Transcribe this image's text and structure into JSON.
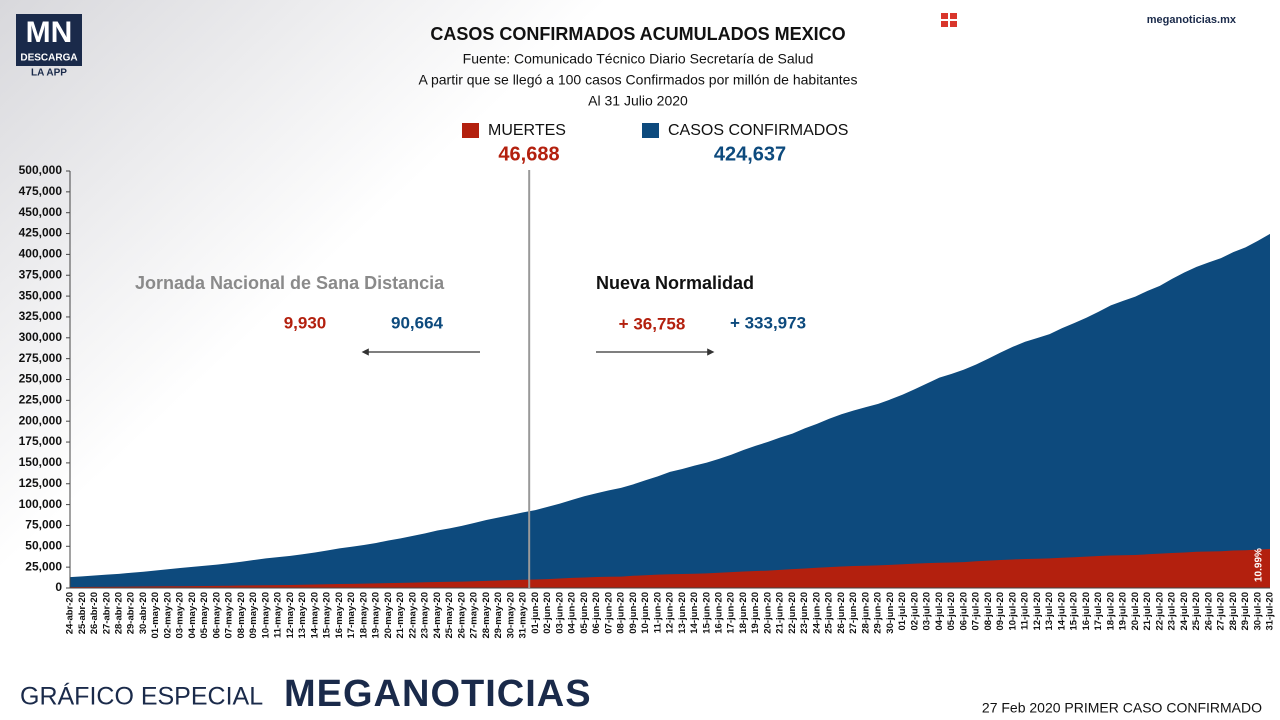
{
  "chart_data": {
    "type": "area",
    "logo": {
      "mark": "MN",
      "line1": "DESCARGA",
      "line2": "LA APP"
    },
    "site": "meganoticias.mx",
    "title": "CASOS CONFIRMADOS ACUMULADOS MEXICO",
    "subtitle": [
      "Fuente: Comunicado Técnico Diario Secretaría de Salud",
      "A partir que se llegó a 100 casos Confirmados por millón de habitantes",
      "Al 31 Julio 2020"
    ],
    "categories": [
      "24-abr-20",
      "25-abr-20",
      "26-abr-20",
      "27-abr-20",
      "28-abr-20",
      "29-abr-20",
      "30-abr-20",
      "01-may-20",
      "02-may-20",
      "03-may-20",
      "04-may-20",
      "05-may-20",
      "06-may-20",
      "07-may-20",
      "08-may-20",
      "09-may-20",
      "10-may-20",
      "11-may-20",
      "12-may-20",
      "13-may-20",
      "14-may-20",
      "15-may-20",
      "16-may-20",
      "17-may-20",
      "18-may-20",
      "19-may-20",
      "20-may-20",
      "21-may-20",
      "22-may-20",
      "23-may-20",
      "24-may-20",
      "25-may-20",
      "26-may-20",
      "27-may-20",
      "28-may-20",
      "29-may-20",
      "30-may-20",
      "31-may-20",
      "01-jun-20",
      "02-jun-20",
      "03-jun-20",
      "04-jun-20",
      "05-jun-20",
      "06-jun-20",
      "07-jun-20",
      "08-jun-20",
      "09-jun-20",
      "10-jun-20",
      "11-jun-20",
      "12-jun-20",
      "13-jun-20",
      "14-jun-20",
      "15-jun-20",
      "16-jun-20",
      "17-jun-20",
      "18-jun-20",
      "19-jun-20",
      "20-jun-20",
      "21-jun-20",
      "22-jun-20",
      "23-jun-20",
      "24-jun-20",
      "25-jun-20",
      "26-jun-20",
      "27-jun-20",
      "28-jun-20",
      "29-jun-20",
      "30-jun-20",
      "01-jul-20",
      "02-jul-20",
      "03-jul-20",
      "04-jul-20",
      "05-jul-20",
      "06-jul-20",
      "07-jul-20",
      "08-jul-20",
      "09-jul-20",
      "10-jul-20",
      "11-jul-20",
      "12-jul-20",
      "13-jul-20",
      "14-jul-20",
      "15-jul-20",
      "16-jul-20",
      "17-jul-20",
      "18-jul-20",
      "19-jul-20",
      "20-jul-20",
      "21-jul-20",
      "22-jul-20",
      "23-jul-20",
      "24-jul-20",
      "25-jul-20",
      "26-jul-20",
      "27-jul-20",
      "28-jul-20",
      "29-jul-20",
      "30-jul-20",
      "31-jul-20"
    ],
    "series": [
      {
        "name": "CASOS CONFIRMADOS",
        "color": "#0d4a7d",
        "total_label": "424,637",
        "values": [
          13000,
          14000,
          15000,
          16000,
          17000,
          18300,
          19500,
          21000,
          22500,
          24000,
          25300,
          26700,
          28000,
          29700,
          31500,
          33500,
          35500,
          37000,
          38500,
          40500,
          42500,
          45000,
          47500,
          49500,
          51500,
          54000,
          57000,
          59500,
          62500,
          65500,
          69000,
          71500,
          74500,
          78000,
          81500,
          84500,
          87500,
          90664,
          93400,
          97300,
          101200,
          105700,
          110000,
          113600,
          117100,
          120100,
          124300,
          129200,
          133900,
          139200,
          142700,
          146800,
          150300,
          154900,
          159800,
          165500,
          170500,
          175200,
          180500,
          185100,
          191400,
          196800,
          202900,
          208400,
          212800,
          216900,
          220700,
          226100,
          231800,
          238500,
          245300,
          252200,
          256800,
          261800,
          268000,
          275000,
          282300,
          289200,
          295300,
          299800,
          304400,
          311500,
          317600,
          324000,
          331300,
          338900,
          344200,
          349400,
          356300,
          362300,
          370700,
          378300,
          385000,
          390500,
          395500,
          402700,
          408400,
          416200,
          424637
        ]
      },
      {
        "name": "MUERTES",
        "color": "#b3200e",
        "total_label": "46,688",
        "values": [
          1100,
          1200,
          1300,
          1400,
          1500,
          1600,
          1750,
          1900,
          2050,
          2150,
          2250,
          2400,
          2550,
          2700,
          2950,
          3150,
          3350,
          3450,
          3550,
          3900,
          4200,
          4450,
          4750,
          5000,
          5200,
          5500,
          5850,
          6200,
          6500,
          6850,
          7200,
          7450,
          7650,
          8150,
          8600,
          9050,
          9450,
          9930,
          10200,
          10650,
          11350,
          12100,
          12550,
          13150,
          13500,
          13700,
          14650,
          15350,
          16000,
          16450,
          16850,
          17150,
          17550,
          18300,
          19050,
          19750,
          20400,
          20800,
          21800,
          22600,
          23400,
          24300,
          25000,
          25800,
          26400,
          26650,
          27100,
          27750,
          28500,
          29200,
          29850,
          30350,
          30650,
          31100,
          32000,
          32800,
          33500,
          34200,
          34800,
          35000,
          35500,
          36300,
          36900,
          37600,
          38300,
          38900,
          39200,
          39500,
          40400,
          41200,
          41900,
          42600,
          43400,
          43700,
          44000,
          44900,
          45300,
          46000,
          46688
        ]
      }
    ],
    "divider": "01-jun-20",
    "annotations": {
      "before": "Jornada Nacional de Sana Distancia",
      "after": "Nueva Normalidad",
      "deaths_before": "9,930",
      "cases_before": "90,664",
      "deaths_after": "+ 36,758",
      "cases_after": "+ 333,973",
      "end_percent": "10.99%"
    },
    "ylim": [
      0,
      500000
    ],
    "yticks": [
      0,
      {
        "value": 25000,
        "label": "25,000"
      },
      {
        "value": 50000,
        "label": "50,000"
      },
      {
        "value": 75000,
        "label": "75,000"
      },
      {
        "value": 100000,
        "label": "100,000"
      },
      {
        "value": 125000,
        "label": "125,000"
      },
      {
        "value": 150000,
        "label": "150,000"
      },
      {
        "value": 175000,
        "label": "175,000"
      },
      {
        "value": 200000,
        "label": "200,000"
      },
      {
        "value": 225000,
        "label": "225,000"
      },
      {
        "value": 250000,
        "label": "250,000"
      },
      {
        "value": 275000,
        "label": "275,000"
      },
      {
        "value": 300000,
        "label": "300,000"
      },
      {
        "value": 325000,
        "label": "325,000"
      },
      {
        "value": 350000,
        "label": "350,000"
      },
      {
        "value": 375000,
        "label": "375,000"
      },
      {
        "value": 400000,
        "label": "400,000"
      },
      {
        "value": 425000,
        "label": "425,000"
      },
      {
        "value": 450000,
        "label": "450,000"
      },
      {
        "value": 475000,
        "label": "475,000"
      },
      {
        "value": 500000,
        "label": "500,000"
      }
    ],
    "grid": false,
    "footer": {
      "left": "GRÁFICO ESPECIAL",
      "brand": "MEGANOTICIAS",
      "right": "27 Feb 2020 PRIMER CASO CONFIRMADO"
    }
  }
}
